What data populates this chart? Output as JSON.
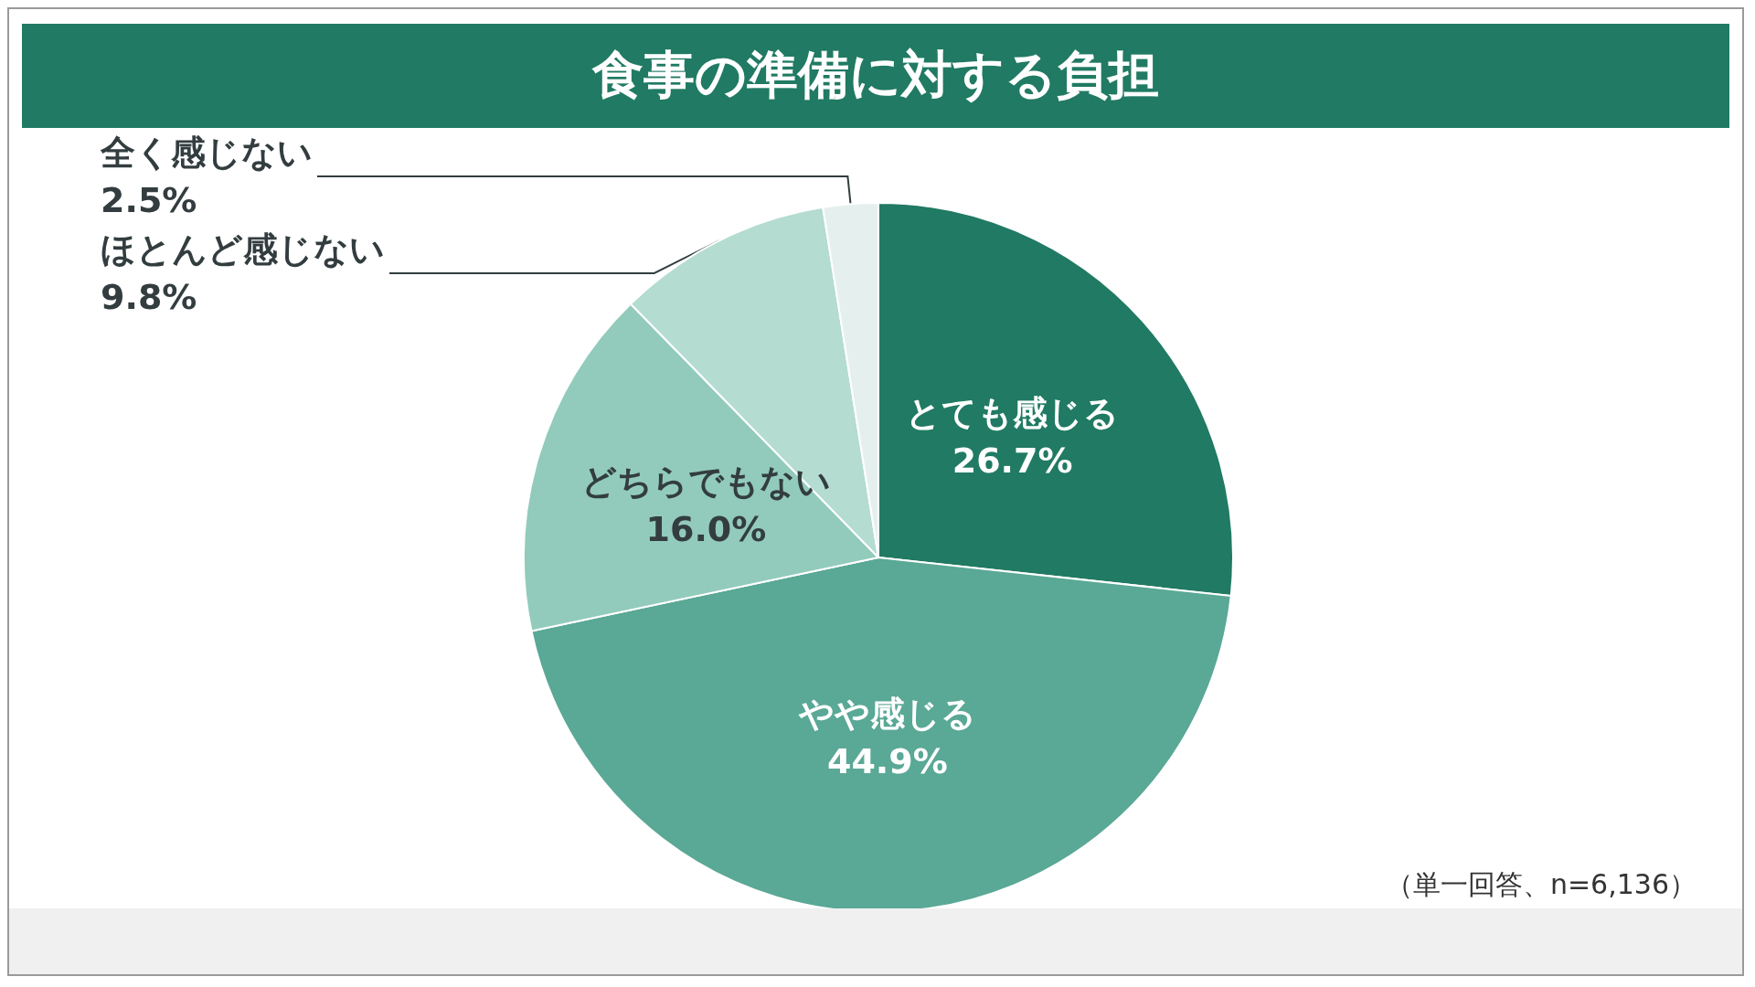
{
  "chart_data": {
    "type": "pie",
    "title": "食事の準備に対する負担",
    "categories": [
      "とても感じる",
      "やや感じる",
      "どちらでもない",
      "ほとんど感じない",
      "全く感じない"
    ],
    "values": [
      26.7,
      44.9,
      16.0,
      9.8,
      2.5
    ],
    "colors": [
      "#217a63",
      "#5aa896",
      "#92cbbb",
      "#b4dcd1",
      "#e5f0ee"
    ],
    "value_labels": [
      "26.7%",
      "44.9%",
      "16.0%",
      "9.8%",
      "2.5%"
    ],
    "legend": false,
    "annotations": [
      "（単一回答、n=6,136）"
    ]
  }
}
